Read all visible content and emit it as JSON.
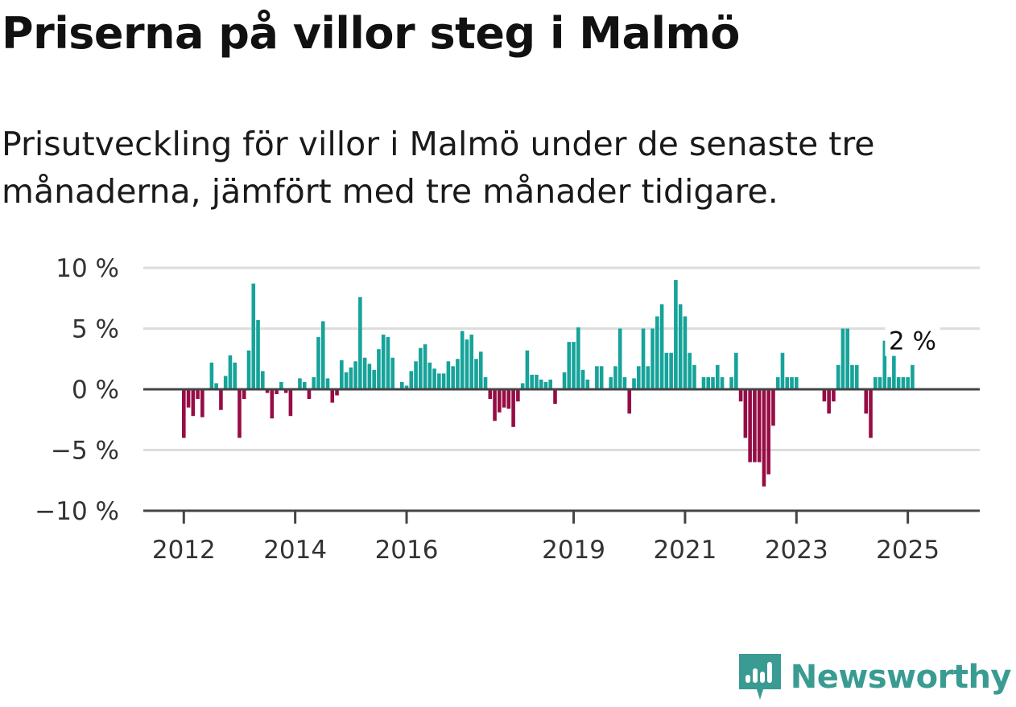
{
  "header": {
    "title": "Priserna på villor steg i Malmö",
    "subtitle": "Prisutveckling för villor i Malmö under de senaste tre månaderna, jämfört med tre månader tidigare."
  },
  "brand": {
    "name": "Newsworthy",
    "icon": "newsworthy-logo-icon",
    "color": "#3a9b92"
  },
  "colors": {
    "positive": "#16a39a",
    "negative": "#960d45",
    "grid": "#dddddd",
    "zero_line": "#444444"
  },
  "chart_data": {
    "type": "bar",
    "title": "Priserna på villor steg i Malmö",
    "subtitle": "Prisutveckling för villor i Malmö under de senaste tre månaderna, jämfört med tre månader tidigare.",
    "xlabel": "",
    "ylabel": "",
    "ylim": [
      -10,
      10
    ],
    "y_ticks": [
      10,
      5,
      0,
      -5,
      -10
    ],
    "y_tick_labels": [
      "10 %",
      "5 %",
      "0 %",
      "−5 %",
      "−10 %"
    ],
    "x_tick_labels": [
      "2012",
      "2014",
      "2016",
      "2019",
      "2021",
      "2023",
      "2025"
    ],
    "x_tick_months": [
      "2012-01",
      "2014-01",
      "2016-01",
      "2019-01",
      "2021-01",
      "2023-01",
      "2025-01"
    ],
    "grid": true,
    "start_month": "2012-01",
    "values": [
      -4,
      -1.5,
      -2.2,
      -0.8,
      -2.3,
      0,
      2.2,
      0.5,
      -1.7,
      1.1,
      2.8,
      2.2,
      -4,
      -0.8,
      3.2,
      8.7,
      5.7,
      1.5,
      -0.3,
      -2.4,
      -0.4,
      0.6,
      -0.3,
      -2.2,
      0,
      0.9,
      0.6,
      -0.8,
      1,
      4.3,
      5.6,
      0.9,
      -1.1,
      -0.5,
      2.4,
      1.4,
      1.8,
      2.3,
      7.6,
      2.6,
      2.1,
      1.6,
      3.3,
      4.5,
      4.3,
      2.6,
      0,
      0.6,
      0.3,
      1.5,
      2.3,
      3.4,
      3.7,
      2.2,
      1.7,
      1.3,
      1.3,
      2.3,
      1.9,
      2.5,
      4.8,
      4.1,
      4.5,
      2.5,
      3.1,
      1,
      -0.8,
      -2.6,
      -1.9,
      -1.5,
      -1.6,
      -3.1,
      -1,
      0.5,
      3.2,
      1.2,
      1.2,
      0.8,
      0.6,
      0.8,
      -1.2,
      0,
      1.4,
      3.9,
      3.9,
      5.1,
      1.6,
      0.8,
      0,
      1.9,
      1.9,
      0,
      1,
      1.9,
      5,
      1,
      -2,
      0.9,
      1.9,
      5,
      1.9,
      5,
      6,
      7,
      3,
      3,
      9,
      7,
      6,
      3,
      2,
      0,
      1,
      1,
      1,
      2,
      1,
      0,
      1,
      3,
      -1,
      -4,
      -6,
      -6,
      -6,
      -8,
      -7,
      -3,
      1,
      3,
      1,
      1,
      1,
      0,
      0,
      0,
      0,
      0,
      -1,
      -2,
      -1,
      2,
      5,
      5,
      2,
      2,
      0,
      -2,
      -4,
      1,
      1,
      4,
      1,
      3,
      1,
      1,
      1,
      2
    ],
    "annotation": {
      "text": "2 %",
      "target": "last"
    }
  }
}
